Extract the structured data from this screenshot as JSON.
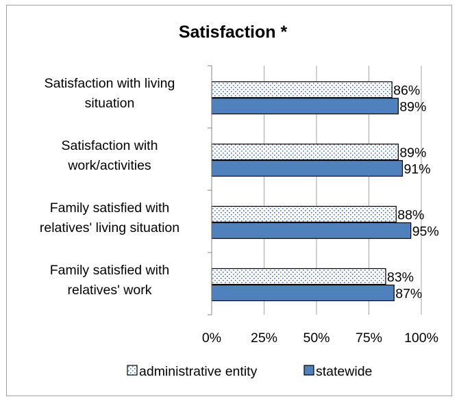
{
  "chart_data": {
    "type": "bar",
    "orientation": "horizontal",
    "title": "Satisfaction  *",
    "categories": [
      [
        "Satisfaction with living",
        "situation"
      ],
      [
        "Satisfaction with",
        "work/activities"
      ],
      [
        "Family satisfied with",
        "relatives' living situation"
      ],
      [
        "Family satisfied with",
        "relatives' work"
      ]
    ],
    "series": [
      {
        "name": "administrative entity",
        "values": [
          86,
          89,
          88,
          83
        ],
        "labels": [
          "86%",
          "89%",
          "88%",
          "83%"
        ],
        "pattern": "dotted",
        "color": "#4472c4"
      },
      {
        "name": "statewide",
        "values": [
          89,
          91,
          95,
          87
        ],
        "labels": [
          "89%",
          "91%",
          "95%",
          "87%"
        ],
        "pattern": "solid",
        "color": "#4f81bd"
      }
    ],
    "xlim": [
      0,
      100
    ],
    "xticks": [
      "0%",
      "25%",
      "50%",
      "75%",
      "100%"
    ],
    "grid": "vertical",
    "legend": "bottom"
  }
}
